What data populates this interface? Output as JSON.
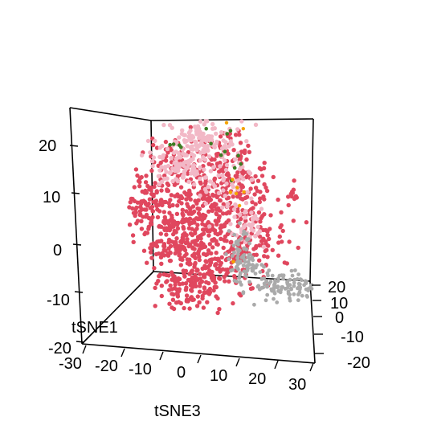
{
  "chart_data": {
    "type": "scatter",
    "title": "",
    "axes": {
      "vertical": {
        "ticks": [
          "20",
          "10",
          "0",
          "-10",
          "-20"
        ]
      },
      "x": {
        "label": "tSNE3",
        "ticks": [
          "-30",
          "-20",
          "-10",
          "0",
          "10",
          "20",
          "30"
        ],
        "range": [
          -30,
          30
        ]
      },
      "y": {
        "label": "tSNE1",
        "ticks": [
          "-20",
          "-10",
          "0",
          "10",
          "20"
        ],
        "range": [
          -20,
          20
        ]
      }
    },
    "grid": false,
    "legend": "none",
    "series": [
      {
        "color": "#e0475e",
        "size": 4.2,
        "n": 1050
      },
      {
        "color": "#f2b8c6",
        "size": 4.2,
        "n": 300
      },
      {
        "color": "#aaaaaa",
        "size": 3.6,
        "n": 190
      },
      {
        "color": "#3c7d22",
        "size": 3.4,
        "n": 16
      },
      {
        "color": "#f5a300",
        "size": 3.2,
        "n": 9
      }
    ]
  }
}
